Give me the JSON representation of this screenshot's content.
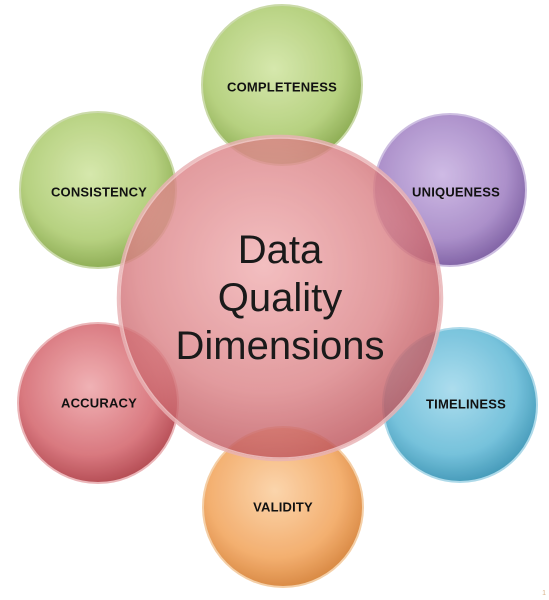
{
  "diagram": {
    "center": {
      "lines": [
        "Data",
        "Quality",
        "Dimensions"
      ],
      "color": "#d9797e"
    },
    "dimensions": [
      {
        "label": "COMPLETENESS",
        "color": "#a6c469"
      },
      {
        "label": "UNIQUENESS",
        "color": "#9f80c1"
      },
      {
        "label": "TIMELINESS",
        "color": "#5fb6d3"
      },
      {
        "label": "VALIDITY",
        "color": "#f0a45c"
      },
      {
        "label": "ACCURACY",
        "color": "#d0656b"
      },
      {
        "label": "CONSISTENCY",
        "color": "#a6c469"
      }
    ],
    "page_number": "1"
  }
}
